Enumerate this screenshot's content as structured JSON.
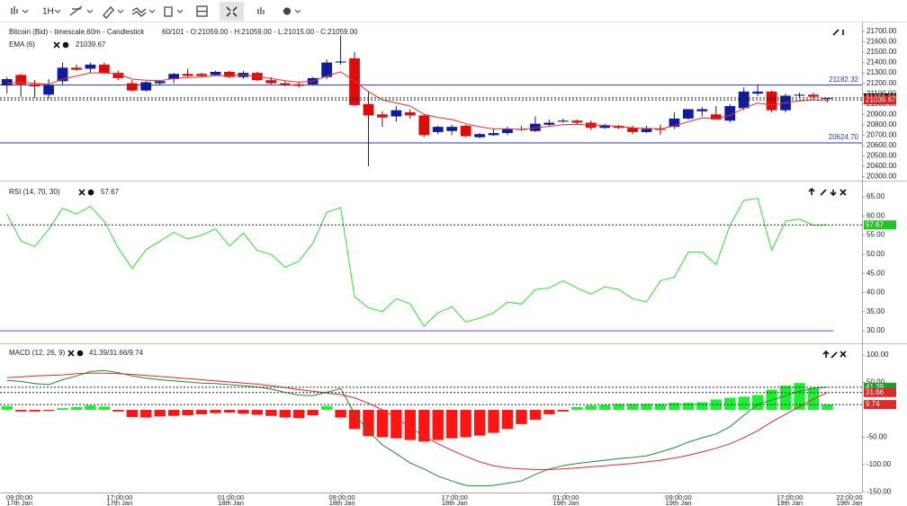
{
  "toolbar": {
    "timeframe": "1H"
  },
  "chart_data": [
    {
      "type": "candlestick",
      "title": "Bitcoin (Bid) - timescale.60m - Candlestick",
      "info": "60/101 - O:21059.00 - H:21059.00 - L:21015.00 - C:21059.00",
      "up_color": "#0d1ba0",
      "down_color": "#e00a0a",
      "open": [
        21180,
        21280,
        21190,
        21090,
        21220,
        21350,
        21340,
        21380,
        21300,
        21200,
        21130,
        21200,
        21240,
        21290,
        21290,
        21280,
        21310,
        21260,
        21300,
        21230,
        21200,
        21190,
        21190,
        21260,
        21400,
        21440,
        21000,
        20900,
        20880,
        20920,
        20890,
        20730,
        20740,
        20790,
        20680,
        20700,
        20720,
        20760,
        20740,
        20800,
        20830,
        20840,
        20820,
        20770,
        20790,
        20770,
        20730,
        20760,
        20780,
        20860,
        20930,
        20900,
        20840,
        20960,
        21100,
        21120,
        20940,
        21080,
        21090,
        21059
      ],
      "high": [
        21260,
        21290,
        21230,
        21240,
        21400,
        21380,
        21400,
        21400,
        21320,
        21230,
        21220,
        21230,
        21300,
        21340,
        21300,
        21320,
        21320,
        21320,
        21310,
        21260,
        21220,
        21210,
        21260,
        21430,
        21660,
        21500,
        21120,
        20930,
        20980,
        20950,
        20900,
        20790,
        20800,
        20800,
        20720,
        20760,
        20780,
        20790,
        20880,
        20850,
        20860,
        20850,
        20840,
        20810,
        20800,
        20790,
        20790,
        20800,
        20920,
        20950,
        20970,
        20980,
        21000,
        21160,
        21190,
        21130,
        21100,
        21110,
        21110,
        21059
      ],
      "low": [
        21100,
        21070,
        21060,
        21050,
        21190,
        21320,
        21300,
        21290,
        21230,
        21120,
        21120,
        21180,
        21200,
        21260,
        21260,
        21270,
        21250,
        21240,
        21220,
        21190,
        21170,
        21160,
        21180,
        21240,
        21380,
        20980,
        20400,
        20780,
        20830,
        20860,
        20680,
        20710,
        20700,
        20680,
        20670,
        20690,
        20700,
        20740,
        20730,
        20790,
        20820,
        20800,
        20750,
        20760,
        20760,
        20710,
        20720,
        20700,
        20760,
        20850,
        20880,
        20850,
        20820,
        20940,
        21080,
        20920,
        20920,
        21060,
        21050,
        21015
      ],
      "close": [
        21240,
        21190,
        21170,
        21180,
        21350,
        21330,
        21380,
        21300,
        21250,
        21130,
        21210,
        21220,
        21290,
        21270,
        21270,
        21310,
        21260,
        21300,
        21230,
        21200,
        21180,
        21175,
        21250,
        21400,
        21410,
        20990,
        20890,
        20870,
        20940,
        20890,
        20700,
        20780,
        20780,
        20690,
        20710,
        20720,
        20760,
        20750,
        20810,
        20820,
        20840,
        20820,
        20770,
        20790,
        20770,
        20730,
        20760,
        20750,
        20860,
        20950,
        20950,
        20850,
        20980,
        21120,
        21120,
        20940,
        21080,
        21090,
        21070,
        21059
      ],
      "ema": {
        "name": "EMA (6)",
        "color": "#e8302c",
        "values": [
          21200,
          21210,
          21200,
          21190,
          21240,
          21270,
          21300,
          21300,
          21290,
          21240,
          21230,
          21225,
          21245,
          21255,
          21260,
          21275,
          21270,
          21280,
          21265,
          21245,
          21225,
          21210,
          21220,
          21270,
          21310,
          21220,
          21120,
          21040,
          21010,
          20980,
          20900,
          20870,
          20850,
          20810,
          20780,
          20760,
          20760,
          20755,
          20770,
          20785,
          20800,
          20805,
          20795,
          20795,
          20785,
          20770,
          20765,
          20760,
          20790,
          20830,
          20865,
          20860,
          20890,
          20960,
          21010,
          20990,
          21010,
          21030,
          21040,
          21039.67
        ]
      },
      "hlines": [
        {
          "value": 21182.32,
          "label": "21182.32",
          "color": "#2b3aa8"
        },
        {
          "value": 20624.7,
          "label": "20624.70",
          "color": "#2b3aa8"
        }
      ],
      "markers": [
        {
          "value": 21059,
          "label": "21059.00",
          "color": "#111111"
        },
        {
          "value": 21039.67,
          "label": "21039.67",
          "color": "#d81e1e"
        }
      ],
      "xlim": [
        -0.5,
        61.5
      ],
      "ylim": [
        20270,
        21760
      ],
      "yticks": [
        {
          "value": 20300,
          "label": "20300.00"
        },
        {
          "value": 20400,
          "label": "20400.00"
        },
        {
          "value": 20500,
          "label": "20500.00"
        },
        {
          "value": 20600,
          "label": "20600.00"
        },
        {
          "value": 20700,
          "label": "20700.00"
        },
        {
          "value": 20800,
          "label": "20800.00"
        },
        {
          "value": 20900,
          "label": "20900.00"
        },
        {
          "value": 21000,
          "label": "21000.00"
        },
        {
          "value": 21100,
          "label": "21100.00"
        },
        {
          "value": 21200,
          "label": "21200.00"
        },
        {
          "value": 21300,
          "label": "21300.00"
        },
        {
          "value": 21400,
          "label": "21400.00"
        },
        {
          "value": 21500,
          "label": "21500.00"
        },
        {
          "value": 21600,
          "label": "21600.00"
        },
        {
          "value": 21700,
          "label": "21700.00"
        }
      ]
    },
    {
      "type": "line",
      "name": "RSI (14, 70, 30)",
      "color": "#2fe02f",
      "values": [
        60.5,
        53.5,
        52,
        56.5,
        62,
        60.5,
        62.5,
        58.6,
        51.7,
        46.3,
        51.2,
        53.4,
        55.7,
        54,
        55,
        56.6,
        52.2,
        55.5,
        51,
        50,
        46.6,
        48.2,
        52.9,
        61,
        62.2,
        38.9,
        36,
        35,
        38.4,
        37,
        31.2,
        34.7,
        36.3,
        32.3,
        33.3,
        34.7,
        37.5,
        37,
        40.8,
        41.2,
        43.1,
        41.2,
        39.6,
        41.5,
        40.8,
        38.4,
        37.5,
        43.1,
        44,
        50.6,
        50.6,
        47.3,
        57.6,
        64.1,
        64.6,
        51,
        58.7,
        59.2,
        57.6,
        57.67
      ],
      "levels": [
        {
          "value": 30,
          "color": "#b47de0"
        }
      ],
      "marker_color": "#22c422",
      "ylim": [
        27.2,
        68.3
      ],
      "yticks": [
        {
          "value": 30,
          "label": "30.00"
        },
        {
          "value": 35,
          "label": "35.00"
        },
        {
          "value": 40,
          "label": "40.00"
        },
        {
          "value": 45,
          "label": "45.00"
        },
        {
          "value": 50,
          "label": "50.00"
        },
        {
          "value": 55,
          "label": "55.00"
        },
        {
          "value": 60,
          "label": "60.00"
        },
        {
          "value": 65,
          "label": "65.00"
        }
      ]
    },
    {
      "type": "macd",
      "name": "MACD (12, 26, 9)",
      "legend_text": "41.39/31.66/9.74",
      "macd": {
        "color": "#1d8a30",
        "values": [
          54,
          52,
          48,
          46,
          55,
          62,
          70,
          72,
          68,
          62,
          58,
          55,
          53,
          51,
          49,
          48,
          46,
          44,
          42,
          38,
          32,
          27,
          26,
          32,
          39,
          -7,
          -39,
          -64,
          -80,
          -97,
          -108,
          -121,
          -130,
          -138,
          -139,
          -138,
          -134,
          -130,
          -118,
          -108,
          -102,
          -98,
          -95,
          -92,
          -89,
          -87,
          -84,
          -77,
          -69,
          -59,
          -51,
          -44,
          -31,
          -10,
          10,
          18,
          26,
          34,
          39,
          41.39
        ]
      },
      "signal": {
        "color": "#e02a2a",
        "values": [
          59,
          60,
          62,
          63,
          64,
          66,
          67,
          67,
          66,
          65,
          63,
          61,
          59,
          57,
          55,
          53,
          51,
          49,
          47,
          44,
          41,
          37,
          34,
          31,
          28,
          22,
          12,
          0,
          -15,
          -32,
          -48,
          -62,
          -74,
          -85,
          -95,
          -102,
          -106,
          -108,
          -109,
          -109,
          -108,
          -106,
          -104,
          -102,
          -100,
          -98,
          -95,
          -92,
          -88,
          -83,
          -77,
          -70,
          -62,
          -51,
          -38,
          -22,
          -8,
          6,
          20,
          31.66
        ]
      },
      "histogram": {
        "up_color": "#18f030",
        "down_color": "#ff1414",
        "values": [
          7,
          -3,
          -3,
          -2,
          3,
          5,
          8,
          6,
          -3,
          -13,
          -14,
          -12,
          -11,
          -10,
          -8,
          -6,
          -5,
          -7,
          -9,
          -11,
          -14,
          -15,
          -10,
          7,
          -14,
          -35,
          -48,
          -50,
          -52,
          -55,
          -58,
          -55,
          -52,
          -50,
          -47,
          -42,
          -35,
          -26,
          -18,
          -8,
          -3,
          5,
          8,
          9,
          11,
          11,
          11,
          11,
          13,
          13,
          14,
          19,
          22,
          24,
          27,
          37,
          44,
          49,
          40,
          9.74
        ]
      },
      "marker_colors": [
        "#1d9a30",
        "#e02a2a",
        "#e02a2a"
      ],
      "ylim": [
        -151,
        115
      ],
      "yticks": [
        {
          "value": 100,
          "label": "100.00"
        },
        {
          "value": 50,
          "label": "50.00"
        },
        {
          "value": -50,
          "label": "-50.00"
        },
        {
          "value": -100,
          "label": "-100.00"
        },
        {
          "value": -150,
          "label": "-150.00"
        }
      ],
      "xticks": [
        {
          "value": 0.9,
          "label": "09:00:00",
          "sublabel": "17th Jan"
        },
        {
          "value": 8.1,
          "label": "17:00:00",
          "sublabel": "17th Jan"
        },
        {
          "value": 16.1,
          "label": "01:00:00",
          "sublabel": "18th Jan"
        },
        {
          "value": 24.1,
          "label": "09:00:00",
          "sublabel": "18th Jan"
        },
        {
          "value": 32.2,
          "label": "17:00:00",
          "sublabel": "18th Jan"
        },
        {
          "value": 40.2,
          "label": "01:00:00",
          "sublabel": "19th Jan"
        },
        {
          "value": 48.3,
          "label": "09:00:00",
          "sublabel": "19th Jan"
        },
        {
          "value": 56.3,
          "label": "17:00:00",
          "sublabel": "19th Jan"
        },
        {
          "value": 60.6,
          "label": "22:00:00",
          "sublabel": "19th Jan"
        }
      ]
    }
  ]
}
